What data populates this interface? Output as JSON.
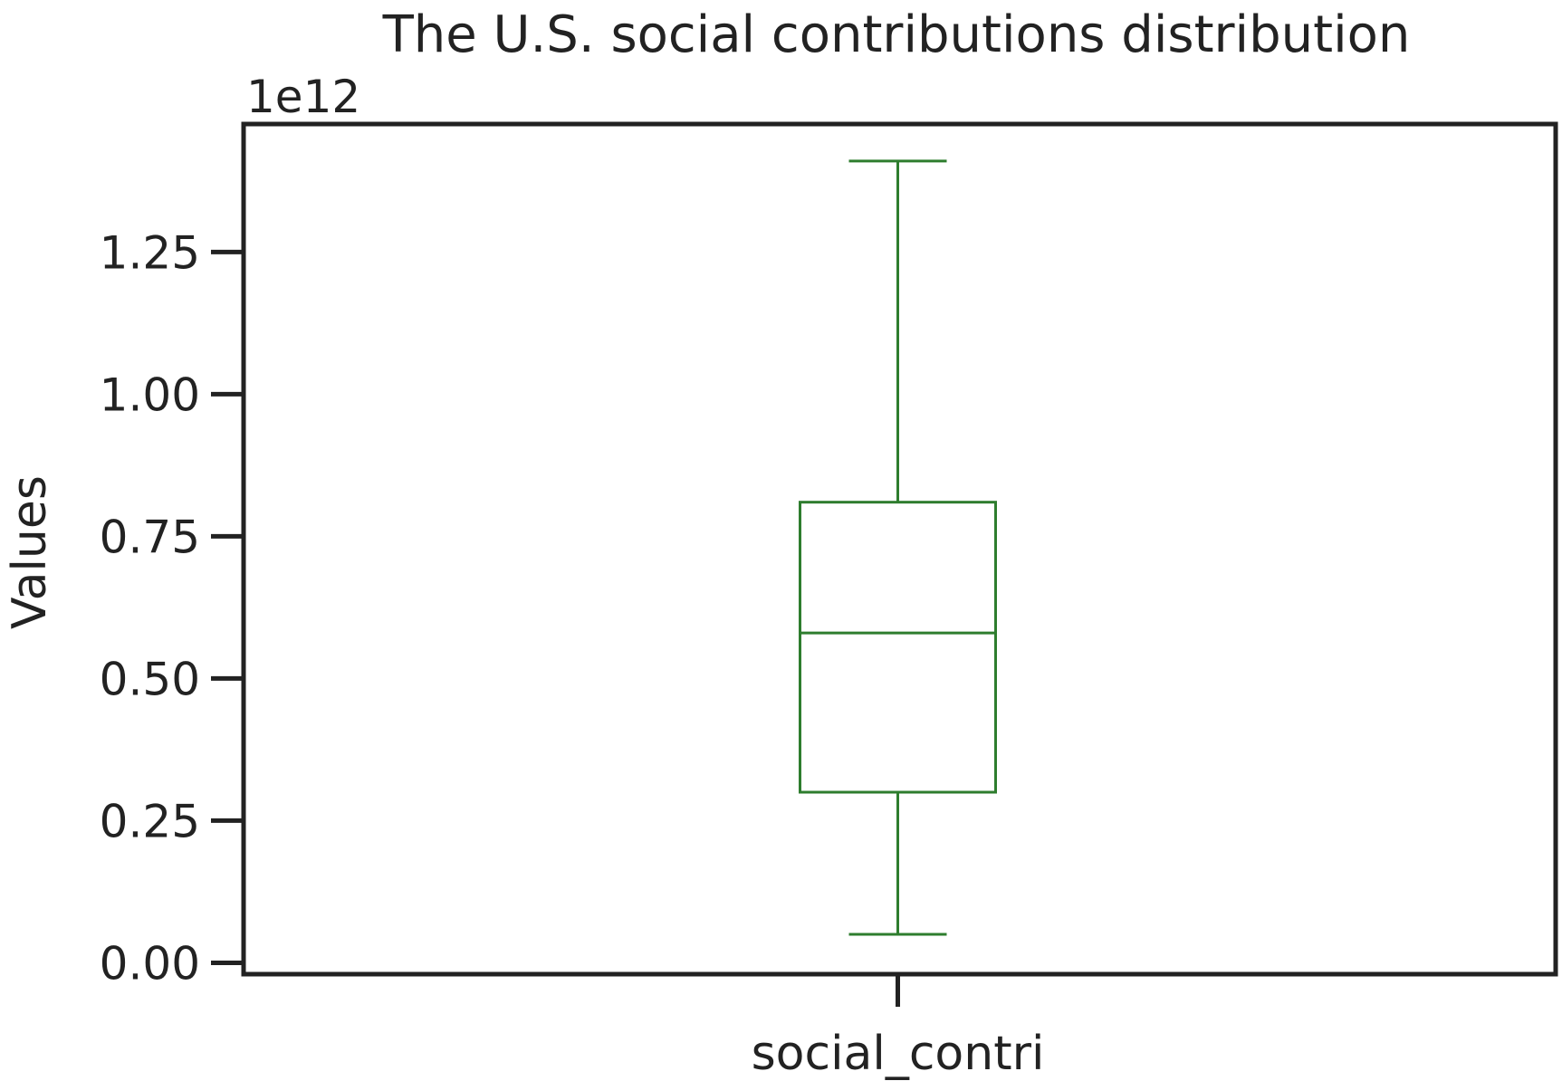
{
  "chart_data": {
    "type": "box",
    "title": "The U.S. social contributions distribution",
    "ylabel": "Values",
    "xlabel": "",
    "offset_text": "1e12",
    "categories": [
      "social_contri"
    ],
    "boxes": [
      {
        "category": "social_contri",
        "whisker_low": 0.05,
        "q1": 0.3,
        "median": 0.58,
        "q3": 0.81,
        "whisker_high": 1.41
      }
    ],
    "yticks": [
      0.0,
      0.25,
      0.5,
      0.75,
      1.0,
      1.25
    ],
    "ytick_labels": [
      "0.00",
      "0.25",
      "0.50",
      "0.75",
      "1.00",
      "1.25"
    ],
    "ylim": [
      -0.02,
      1.475
    ],
    "grid": false,
    "colors": {
      "box": "#2e7d2e",
      "axes": "#222222",
      "text": "#222222"
    }
  }
}
